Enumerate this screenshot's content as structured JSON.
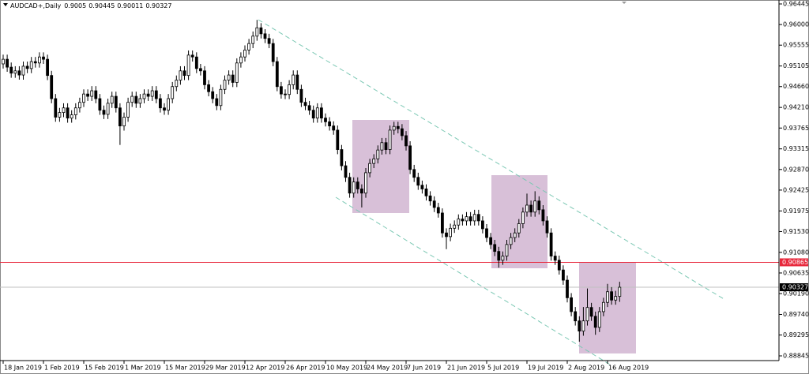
{
  "chart_data": {
    "type": "candlestick",
    "symbol": "AUDCAD+,Daily",
    "open": [
      0.9515,
      0.9525,
      0.9508,
      0.9495,
      0.95,
      0.9491,
      0.951,
      0.9505,
      0.952,
      0.9517,
      0.953,
      0.9525,
      0.949,
      0.944,
      0.94,
      0.941,
      0.942,
      0.9398,
      0.9405,
      0.942,
      0.9432,
      0.945,
      0.9445,
      0.9457,
      0.944,
      0.9415,
      0.9406,
      0.943,
      0.9445,
      0.942,
      0.9381,
      0.94,
      0.9432,
      0.9445,
      0.943,
      0.944,
      0.945,
      0.9445,
      0.9457,
      0.944,
      0.942,
      0.9415,
      0.944,
      0.9466,
      0.948,
      0.95,
      0.949,
      0.9534,
      0.953,
      0.9505,
      0.95,
      0.947,
      0.9455,
      0.944,
      0.9425,
      0.946,
      0.948,
      0.9491,
      0.9475,
      0.9517,
      0.953,
      0.9545,
      0.9559,
      0.9575,
      0.9593,
      0.958,
      0.957,
      0.9559,
      0.952,
      0.9466,
      0.945,
      0.9449,
      0.947,
      0.9491,
      0.946,
      0.9432,
      0.9425,
      0.9415,
      0.9398,
      0.942,
      0.9398,
      0.939,
      0.9381,
      0.9372,
      0.933,
      0.9295,
      0.927,
      0.9236,
      0.926,
      0.9245,
      0.9236,
      0.928,
      0.93,
      0.931,
      0.9329,
      0.9345,
      0.933,
      0.9372,
      0.938,
      0.9375,
      0.936,
      0.9338,
      0.9287,
      0.927,
      0.9253,
      0.9245,
      0.923,
      0.9219,
      0.9205,
      0.9193,
      0.915,
      0.9142,
      0.916,
      0.9167,
      0.918,
      0.9176,
      0.9185,
      0.9176,
      0.919,
      0.9176,
      0.9159,
      0.914,
      0.9125,
      0.911,
      0.9091,
      0.91,
      0.9125,
      0.914,
      0.915,
      0.917,
      0.9195,
      0.921,
      0.9195,
      0.9219,
      0.92,
      0.9176,
      0.915,
      0.91,
      0.9091,
      0.907,
      0.9048,
      0.901,
      0.898,
      0.896,
      0.8938,
      0.896,
      0.8989,
      0.897,
      0.8946,
      0.898,
      0.9,
      0.9023,
      0.9005,
      0.90129
    ],
    "high": [
      0.9535,
      0.9535,
      0.9518,
      0.951,
      0.951,
      0.952,
      0.952,
      0.953,
      0.953,
      0.954,
      0.954,
      0.9535,
      0.95,
      0.945,
      0.942,
      0.943,
      0.943,
      0.9415,
      0.943,
      0.9442,
      0.946,
      0.946,
      0.9467,
      0.9467,
      0.945,
      0.9425,
      0.944,
      0.9455,
      0.9455,
      0.943,
      0.941,
      0.9442,
      0.9455,
      0.9455,
      0.945,
      0.946,
      0.946,
      0.9467,
      0.9467,
      0.945,
      0.943,
      0.945,
      0.9476,
      0.949,
      0.951,
      0.951,
      0.9544,
      0.9544,
      0.954,
      0.9515,
      0.951,
      0.948,
      0.9465,
      0.945,
      0.947,
      0.949,
      0.9501,
      0.9501,
      0.9527,
      0.954,
      0.9555,
      0.9569,
      0.9585,
      0.961,
      0.9603,
      0.959,
      0.958,
      0.9569,
      0.953,
      0.9476,
      0.946,
      0.948,
      0.9501,
      0.9501,
      0.947,
      0.9442,
      0.9435,
      0.9425,
      0.943,
      0.943,
      0.9408,
      0.94,
      0.9391,
      0.9382,
      0.934,
      0.9305,
      0.928,
      0.927,
      0.927,
      0.9255,
      0.929,
      0.931,
      0.932,
      0.9339,
      0.9355,
      0.9355,
      0.9382,
      0.939,
      0.939,
      0.9385,
      0.937,
      0.9348,
      0.9297,
      0.928,
      0.9263,
      0.9255,
      0.924,
      0.9229,
      0.9215,
      0.9203,
      0.916,
      0.917,
      0.9177,
      0.919,
      0.919,
      0.9195,
      0.9195,
      0.92,
      0.92,
      0.9186,
      0.9169,
      0.915,
      0.9135,
      0.912,
      0.911,
      0.9135,
      0.915,
      0.916,
      0.918,
      0.9205,
      0.9235,
      0.922,
      0.924,
      0.9229,
      0.921,
      0.9186,
      0.916,
      0.911,
      0.9101,
      0.908,
      0.9058,
      0.902,
      0.899,
      0.897,
      0.899,
      0.903,
      0.8999,
      0.898,
      0.899,
      0.901,
      0.904,
      0.9033,
      0.9025,
      0.90445
    ],
    "low": [
      0.9505,
      0.9498,
      0.9485,
      0.9485,
      0.9481,
      0.9481,
      0.9495,
      0.9495,
      0.9507,
      0.9507,
      0.9515,
      0.948,
      0.943,
      0.939,
      0.939,
      0.94,
      0.9388,
      0.9388,
      0.9395,
      0.941,
      0.9422,
      0.9435,
      0.9435,
      0.943,
      0.9405,
      0.9396,
      0.9396,
      0.942,
      0.941,
      0.934,
      0.9371,
      0.939,
      0.9422,
      0.942,
      0.942,
      0.943,
      0.9435,
      0.9435,
      0.943,
      0.941,
      0.9405,
      0.9405,
      0.943,
      0.9456,
      0.947,
      0.948,
      0.948,
      0.952,
      0.9495,
      0.949,
      0.946,
      0.9445,
      0.943,
      0.9415,
      0.9415,
      0.945,
      0.947,
      0.9465,
      0.9465,
      0.9507,
      0.952,
      0.9535,
      0.9549,
      0.9565,
      0.957,
      0.956,
      0.9549,
      0.951,
      0.9456,
      0.944,
      0.9439,
      0.9439,
      0.946,
      0.945,
      0.9422,
      0.9415,
      0.9405,
      0.9388,
      0.9388,
      0.9388,
      0.938,
      0.9371,
      0.9362,
      0.932,
      0.9285,
      0.926,
      0.9226,
      0.9226,
      0.9235,
      0.9205,
      0.9226,
      0.927,
      0.929,
      0.93,
      0.9319,
      0.932,
      0.932,
      0.9362,
      0.9365,
      0.935,
      0.9328,
      0.9277,
      0.926,
      0.9243,
      0.9235,
      0.922,
      0.9209,
      0.9195,
      0.9183,
      0.914,
      0.9115,
      0.9132,
      0.915,
      0.9157,
      0.9166,
      0.9166,
      0.9166,
      0.9166,
      0.9166,
      0.9149,
      0.913,
      0.9115,
      0.91,
      0.9075,
      0.9081,
      0.909,
      0.9115,
      0.913,
      0.914,
      0.916,
      0.9185,
      0.9185,
      0.9185,
      0.919,
      0.9166,
      0.914,
      0.909,
      0.9081,
      0.906,
      0.9038,
      0.9,
      0.897,
      0.895,
      0.8915,
      0.8928,
      0.895,
      0.896,
      0.893,
      0.8936,
      0.897,
      0.899,
      0.8995,
      0.8995,
      0.90011
    ],
    "close": [
      0.9525,
      0.9508,
      0.9495,
      0.95,
      0.9491,
      0.951,
      0.9505,
      0.952,
      0.9517,
      0.953,
      0.9525,
      0.949,
      0.944,
      0.94,
      0.941,
      0.942,
      0.9398,
      0.9405,
      0.942,
      0.9432,
      0.945,
      0.9445,
      0.9457,
      0.944,
      0.9415,
      0.9406,
      0.943,
      0.9445,
      0.942,
      0.9381,
      0.94,
      0.9432,
      0.9445,
      0.943,
      0.944,
      0.945,
      0.9445,
      0.9457,
      0.944,
      0.942,
      0.9415,
      0.944,
      0.9466,
      0.948,
      0.95,
      0.949,
      0.9534,
      0.953,
      0.9505,
      0.95,
      0.947,
      0.9455,
      0.944,
      0.9425,
      0.946,
      0.948,
      0.9491,
      0.9475,
      0.9517,
      0.953,
      0.9545,
      0.9559,
      0.9575,
      0.9593,
      0.958,
      0.957,
      0.9559,
      0.952,
      0.9466,
      0.945,
      0.9449,
      0.947,
      0.9491,
      0.946,
      0.9432,
      0.9425,
      0.9415,
      0.9398,
      0.942,
      0.9398,
      0.939,
      0.9381,
      0.9372,
      0.933,
      0.9295,
      0.927,
      0.9236,
      0.926,
      0.9245,
      0.9236,
      0.928,
      0.93,
      0.931,
      0.9329,
      0.9345,
      0.933,
      0.9372,
      0.938,
      0.9375,
      0.936,
      0.9338,
      0.9287,
      0.927,
      0.9253,
      0.9245,
      0.923,
      0.9219,
      0.9205,
      0.9193,
      0.915,
      0.9142,
      0.916,
      0.9167,
      0.918,
      0.9176,
      0.9185,
      0.9176,
      0.919,
      0.9176,
      0.9159,
      0.914,
      0.9125,
      0.911,
      0.9091,
      0.91,
      0.9125,
      0.914,
      0.915,
      0.917,
      0.9195,
      0.921,
      0.9195,
      0.9219,
      0.92,
      0.9176,
      0.915,
      0.91,
      0.9091,
      0.907,
      0.9048,
      0.901,
      0.898,
      0.896,
      0.8938,
      0.896,
      0.8989,
      0.897,
      0.8946,
      0.898,
      0.9,
      0.9023,
      0.9005,
      0.90129,
      0.90327
    ],
    "xticks": [
      {
        "value": 0,
        "label": "18 Jan 2019"
      },
      {
        "value": 10,
        "label": "1 Feb 2019"
      },
      {
        "value": 20,
        "label": "15 Feb 2019"
      },
      {
        "value": 30,
        "label": "1 Mar 2019"
      },
      {
        "value": 40,
        "label": "15 Mar 2019"
      },
      {
        "value": 50,
        "label": "29 Mar 2019"
      },
      {
        "value": 60,
        "label": "12 Apr 2019"
      },
      {
        "value": 70,
        "label": "26 Apr 2019"
      },
      {
        "value": 80,
        "label": "10 May 2019"
      },
      {
        "value": 90,
        "label": "24 May 2019"
      },
      {
        "value": 100,
        "label": "7 Jun 2019"
      },
      {
        "value": 110,
        "label": "21 Jun 2019"
      },
      {
        "value": 120,
        "label": "5 Jul 2019"
      },
      {
        "value": 130,
        "label": "19 Jul 2019"
      },
      {
        "value": 140,
        "label": "2 Aug 2019"
      },
      {
        "value": 150,
        "label": "16 Aug 2019"
      }
    ],
    "ylim": [
      0.88743,
      0.9653
    ],
    "yticks": [
      0.96445,
      {
        "value": 0.96,
        "label": "0.96000"
      },
      0.95555,
      0.95105,
      {
        "value": 0.9466,
        "label": "0.94660"
      },
      {
        "value": 0.9421,
        "label": "0.94210"
      },
      0.93765,
      0.93315,
      {
        "value": 0.9287,
        "label": "0.92870"
      },
      0.92425,
      0.91975,
      {
        "value": 0.9153,
        "label": "0.91530"
      },
      {
        "value": 0.9108,
        "label": "0.91080"
      },
      0.90635,
      {
        "value": 0.9019,
        "label": "0.90190"
      },
      {
        "value": 0.8974,
        "label": "0.89740"
      },
      0.89295,
      0.88845
    ],
    "hline": {
      "value": 0.90865,
      "color": "#e8283c"
    },
    "up_color": "#ffffff",
    "down_color": "#000000"
  }
}
